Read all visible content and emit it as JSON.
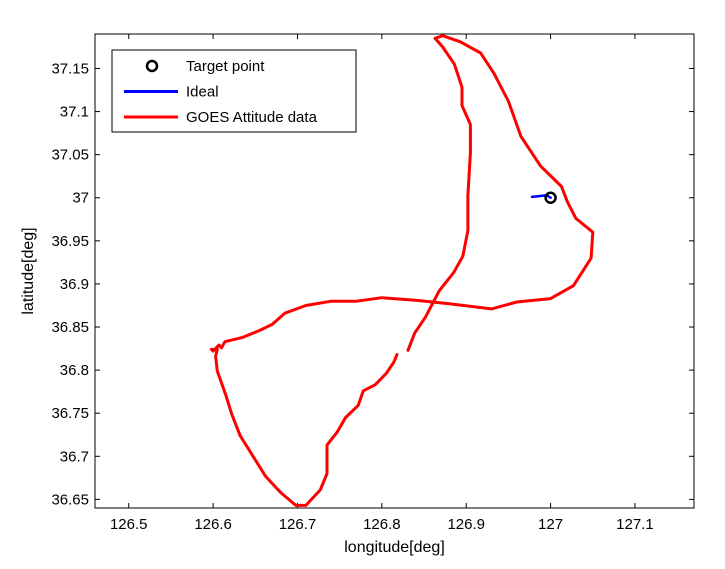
{
  "chart_data": {
    "type": "line",
    "xlabel": "longitude[deg]",
    "ylabel": "latitude[deg]",
    "xlim": [
      126.46,
      127.17
    ],
    "ylim": [
      36.64,
      37.19
    ],
    "xticks": [
      126.5,
      126.6,
      126.7,
      126.8,
      126.9,
      127,
      127.1
    ],
    "xtick_labels": [
      "126.5",
      "126.6",
      "126.7",
      "126.8",
      "126.9",
      "127",
      "127.1"
    ],
    "yticks": [
      36.65,
      36.7,
      36.75,
      36.8,
      36.85,
      36.9,
      36.95,
      37,
      37.05,
      37.1,
      37.15
    ],
    "ytick_labels": [
      "36.65",
      "36.7",
      "36.75",
      "36.8",
      "36.85",
      "36.9",
      "36.95",
      "37",
      "37.05",
      "37.1",
      "37.15"
    ],
    "grid": false,
    "legend_position": "top-left",
    "series": [
      {
        "name": "Target point",
        "kind": "marker",
        "color": "#000000",
        "points": [
          [
            127.0,
            37.0
          ]
        ]
      },
      {
        "name": "Ideal",
        "kind": "line",
        "color": "#0000ff",
        "points": [
          [
            126.978,
            37.001
          ],
          [
            126.988,
            37.002
          ],
          [
            126.995,
            37.003
          ],
          [
            127.0,
            37.0
          ]
        ]
      },
      {
        "name": "GOES Attitude data",
        "kind": "line",
        "color": "#ff0000",
        "segments": [
          [
            [
              126.831,
              36.823
            ],
            [
              126.839,
              36.843
            ],
            [
              126.852,
              36.862
            ],
            [
              126.868,
              36.892
            ],
            [
              126.885,
              36.913
            ],
            [
              126.896,
              36.932
            ],
            [
              126.902,
              36.962
            ],
            [
              126.902,
              37.003
            ],
            [
              126.905,
              37.052
            ],
            [
              126.905,
              37.085
            ],
            [
              126.895,
              37.107
            ],
            [
              126.895,
              37.128
            ],
            [
              126.886,
              37.155
            ],
            [
              126.872,
              37.175
            ],
            [
              126.863,
              37.185
            ],
            [
              126.872,
              37.188
            ],
            [
              126.893,
              37.181
            ],
            [
              126.917,
              37.168
            ],
            [
              126.933,
              37.144
            ],
            [
              126.95,
              37.112
            ],
            [
              126.965,
              37.071
            ],
            [
              126.988,
              37.037
            ],
            [
              127.013,
              37.013
            ],
            [
              127.02,
              36.995
            ],
            [
              127.03,
              36.976
            ],
            [
              127.05,
              36.96
            ],
            [
              127.048,
              36.93
            ],
            [
              127.037,
              36.913
            ],
            [
              127.027,
              36.898
            ],
            [
              127.0,
              36.883
            ],
            [
              126.96,
              36.879
            ],
            [
              126.93,
              36.871
            ],
            [
              126.88,
              36.877
            ],
            [
              126.84,
              36.881
            ],
            [
              126.8,
              36.884
            ],
            [
              126.77,
              36.88
            ],
            [
              126.74,
              36.88
            ],
            [
              126.71,
              36.875
            ],
            [
              126.685,
              36.866
            ],
            [
              126.67,
              36.853
            ],
            [
              126.655,
              36.846
            ],
            [
              126.635,
              36.838
            ],
            [
              126.614,
              36.833
            ],
            [
              126.61,
              36.826
            ],
            [
              126.607,
              36.829
            ],
            [
              126.6,
              36.822
            ],
            [
              126.598,
              36.824
            ],
            [
              126.605,
              36.824
            ],
            [
              126.603,
              36.816
            ],
            [
              126.605,
              36.799
            ],
            [
              126.615,
              36.771
            ],
            [
              126.622,
              36.749
            ],
            [
              126.632,
              36.724
            ],
            [
              126.648,
              36.699
            ],
            [
              126.662,
              36.677
            ],
            [
              126.68,
              36.658
            ],
            [
              126.698,
              36.643
            ],
            [
              126.71,
              36.643
            ],
            [
              126.727,
              36.661
            ],
            [
              126.735,
              36.68
            ],
            [
              126.735,
              36.713
            ],
            [
              126.747,
              36.728
            ],
            [
              126.757,
              36.745
            ],
            [
              126.772,
              36.759
            ],
            [
              126.778,
              36.776
            ],
            [
              126.792,
              36.783
            ],
            [
              126.805,
              36.796
            ],
            [
              126.814,
              36.809
            ],
            [
              126.818,
              36.818
            ]
          ]
        ]
      }
    ]
  }
}
